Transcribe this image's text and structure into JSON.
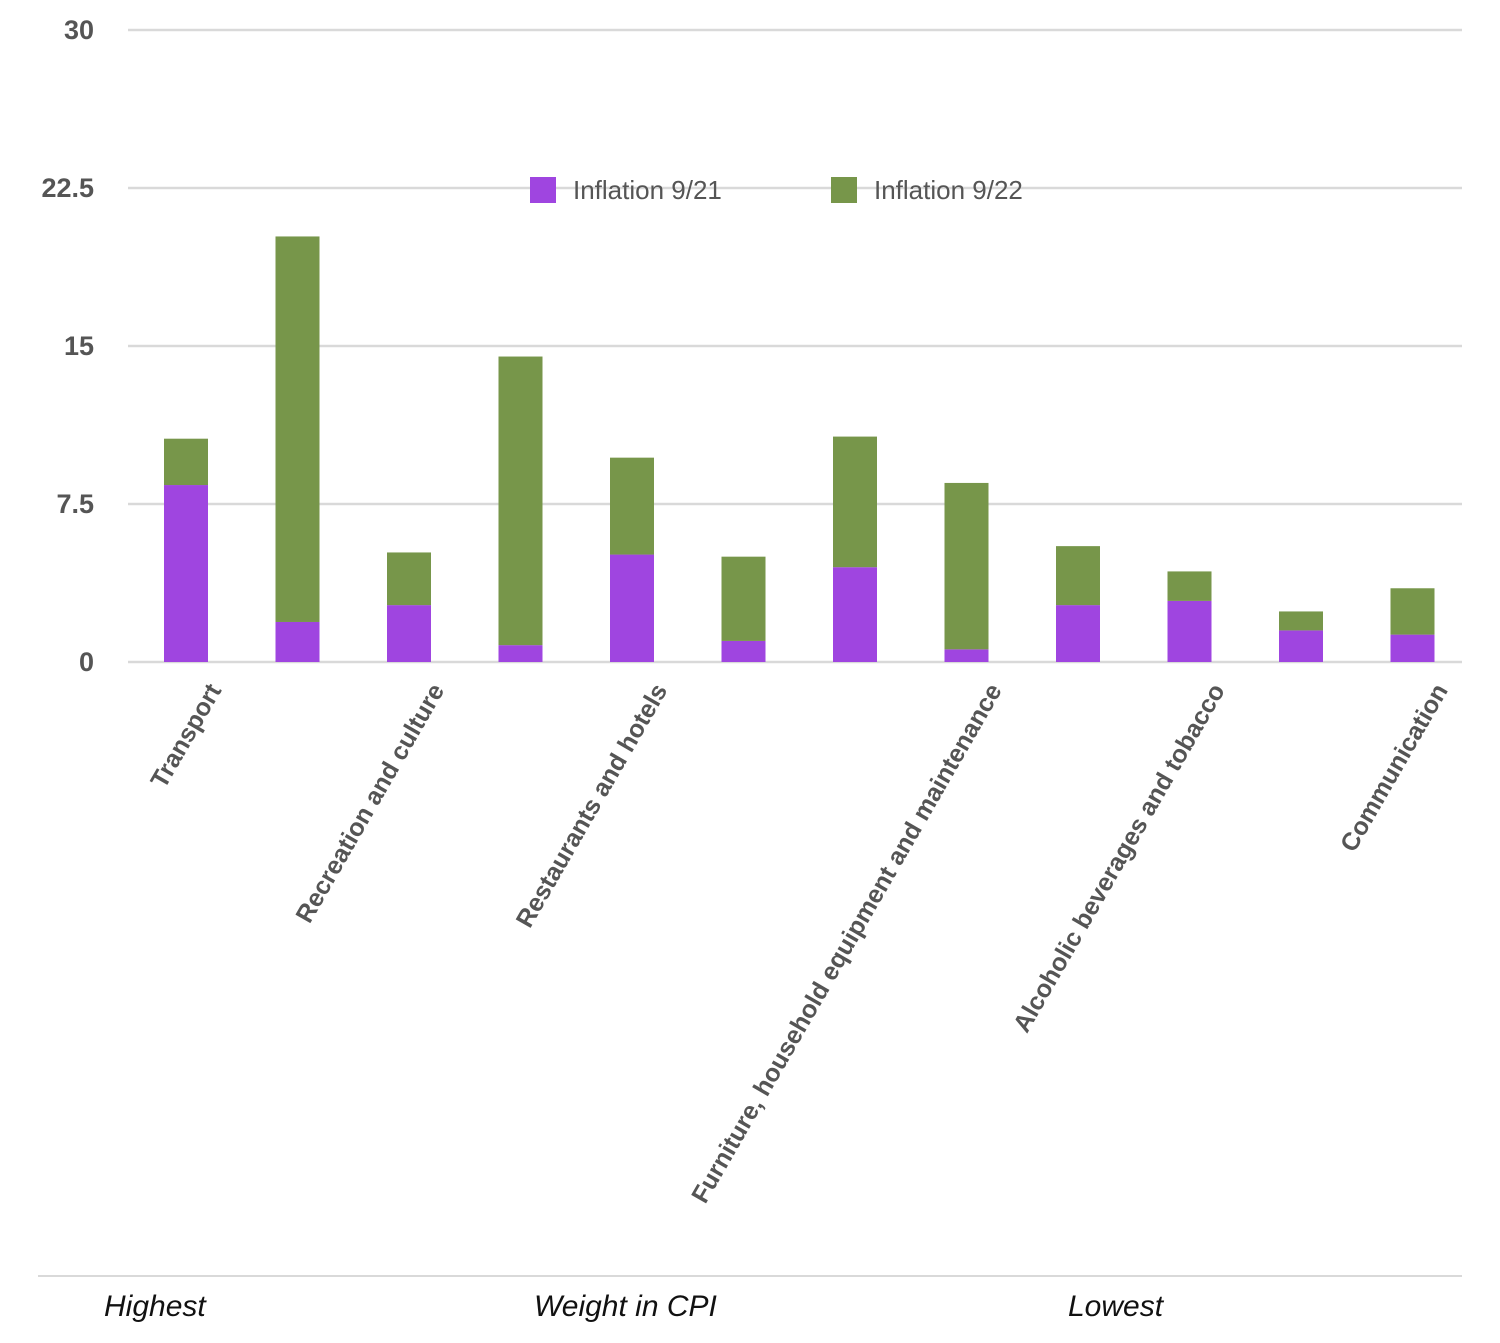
{
  "chart_data": {
    "type": "bar",
    "stacked": true,
    "y_ticks": [
      "0",
      "7.5",
      "15",
      "22.5",
      "30"
    ],
    "ylim": [
      0,
      30
    ],
    "grid": true,
    "legend_position": "top-center",
    "categories": [
      "Transport",
      "",
      "Recreation and culture",
      "",
      "Restaurants and hotels",
      "",
      "",
      "Furniture, household equipment and maintenance",
      "",
      "Alcoholic beverages and tobacco",
      "",
      "Communication"
    ],
    "series": [
      {
        "name": "Inflation 9/21",
        "color": "#9f45e0",
        "values": [
          8.4,
          1.9,
          2.7,
          0.8,
          5.1,
          1.0,
          4.5,
          0.6,
          2.7,
          2.9,
          1.5,
          1.3
        ]
      },
      {
        "name": "Inflation 9/22",
        "color": "#77964a",
        "values": [
          2.2,
          18.3,
          2.5,
          13.7,
          4.6,
          4.0,
          6.2,
          7.9,
          2.8,
          1.4,
          0.9,
          2.2
        ]
      }
    ],
    "footer": {
      "left": "Highest",
      "center": "Weight in CPI",
      "right": "Lowest"
    }
  }
}
